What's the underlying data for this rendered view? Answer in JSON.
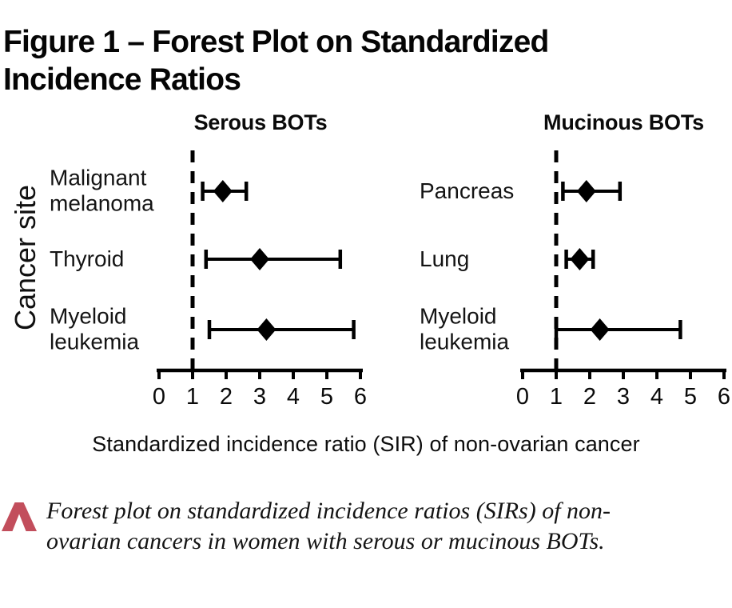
{
  "figure": {
    "title": "Figure 1 – Forest Plot on Standardized Incidence Ratios",
    "y_axis_label": "Cancer site",
    "x_axis_label": "Standardized incidence ratio (SIR) of non-ovarian cancer",
    "caption": "Forest plot on standardized incidence ratios (SIRs) of non-ovarian cancers in women with serous or mucinous BOTs.",
    "caption_icon": "chevron-up-icon",
    "colors": {
      "plot": "#000000",
      "text": "#0a0a0a",
      "caption_accent": "#c24e5c",
      "background": "#ffffff"
    }
  },
  "chart_data": [
    {
      "type": "forest",
      "title": "Serous BOTs",
      "xlabel": "Standardized incidence ratio (SIR) of non-ovarian cancer",
      "ylabel": "Cancer site",
      "xlim": [
        0,
        6
      ],
      "x_ticks": [
        0,
        1,
        2,
        3,
        4,
        5,
        6
      ],
      "reference_line_x": 1,
      "grid": false,
      "rows": [
        {
          "label": "Malignant melanoma",
          "sir": 1.9,
          "ci_low": 1.3,
          "ci_high": 2.6
        },
        {
          "label": "Thyroid",
          "sir": 3.0,
          "ci_low": 1.4,
          "ci_high": 5.4
        },
        {
          "label": "Myeloid leukemia",
          "sir": 3.2,
          "ci_low": 1.5,
          "ci_high": 5.8
        }
      ]
    },
    {
      "type": "forest",
      "title": "Mucinous BOTs",
      "xlabel": "Standardized incidence ratio (SIR) of non-ovarian cancer",
      "ylabel": "Cancer site",
      "xlim": [
        0,
        6
      ],
      "x_ticks": [
        0,
        1,
        2,
        3,
        4,
        5,
        6
      ],
      "reference_line_x": 1,
      "grid": false,
      "rows": [
        {
          "label": "Pancreas",
          "sir": 1.9,
          "ci_low": 1.2,
          "ci_high": 2.9
        },
        {
          "label": "Lung",
          "sir": 1.7,
          "ci_low": 1.3,
          "ci_high": 2.1
        },
        {
          "label": "Myeloid leukemia",
          "sir": 2.3,
          "ci_low": 1.0,
          "ci_high": 4.7
        }
      ]
    }
  ]
}
